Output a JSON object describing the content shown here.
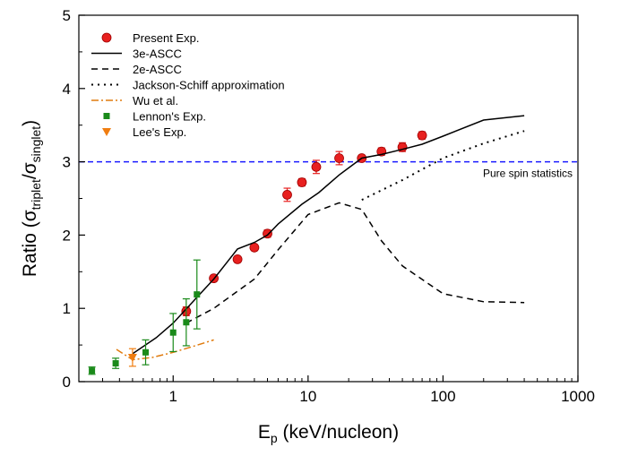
{
  "chart_data": {
    "type": "scatter",
    "xscale": "log",
    "xlim": [
      0.2,
      1000
    ],
    "ylim": [
      0,
      5
    ],
    "x_ticks": [
      {
        "value": 1,
        "label": "1"
      },
      {
        "value": 10,
        "label": "10"
      },
      {
        "value": 100,
        "label": "100"
      },
      {
        "value": 1000,
        "label": "1000"
      }
    ],
    "y_ticks": [
      {
        "value": 0,
        "label": "0"
      },
      {
        "value": 1,
        "label": "1"
      },
      {
        "value": 2,
        "label": "2"
      },
      {
        "value": 3,
        "label": "3"
      },
      {
        "value": 4,
        "label": "4"
      },
      {
        "value": 5,
        "label": "5"
      }
    ],
    "xlabel": {
      "main": "E",
      "sub": "p",
      "rest": " (keV/nucleon)"
    },
    "ylabel": {
      "prefix": "Ratio (σ",
      "sub1": "triplet",
      "mid": "/σ",
      "sub2": "singlet",
      "suffix": ")"
    },
    "grid": false,
    "legend_position": "top-left",
    "annotation": "Pure spin statistics",
    "series": [
      {
        "name": "Present Exp.",
        "style": "marker",
        "marker": "circle",
        "color": "#e8201f",
        "points": [
          {
            "x": 1.25,
            "y": 0.96,
            "err": 0.06
          },
          {
            "x": 2.0,
            "y": 1.41,
            "err": 0.04
          },
          {
            "x": 3.0,
            "y": 1.67,
            "err": 0.04
          },
          {
            "x": 4.0,
            "y": 1.83,
            "err": 0.04
          },
          {
            "x": 5.0,
            "y": 2.02,
            "err": 0.05
          },
          {
            "x": 7.0,
            "y": 2.55,
            "err": 0.09
          },
          {
            "x": 9.0,
            "y": 2.72,
            "err": 0.05
          },
          {
            "x": 11.5,
            "y": 2.93,
            "err": 0.09
          },
          {
            "x": 17.0,
            "y": 3.05,
            "err": 0.09
          },
          {
            "x": 25.0,
            "y": 3.05,
            "err": 0.04
          },
          {
            "x": 35.0,
            "y": 3.14,
            "err": 0.05
          },
          {
            "x": 50.0,
            "y": 3.2,
            "err": 0.06
          },
          {
            "x": 70.0,
            "y": 3.36,
            "err": 0.05
          }
        ]
      },
      {
        "name": "3e-ASCC",
        "style": "solid",
        "color": "#000000",
        "points": [
          {
            "x": 0.5,
            "y": 0.38
          },
          {
            "x": 0.75,
            "y": 0.6
          },
          {
            "x": 1.0,
            "y": 0.8
          },
          {
            "x": 1.5,
            "y": 1.15
          },
          {
            "x": 2.0,
            "y": 1.4
          },
          {
            "x": 3.0,
            "y": 1.81
          },
          {
            "x": 4.0,
            "y": 1.9
          },
          {
            "x": 5.0,
            "y": 2.0
          },
          {
            "x": 6.0,
            "y": 2.15
          },
          {
            "x": 9.0,
            "y": 2.42
          },
          {
            "x": 12.0,
            "y": 2.58
          },
          {
            "x": 17.0,
            "y": 2.82
          },
          {
            "x": 25.0,
            "y": 3.05
          },
          {
            "x": 35.0,
            "y": 3.1
          },
          {
            "x": 50.0,
            "y": 3.17
          },
          {
            "x": 70.0,
            "y": 3.24
          },
          {
            "x": 100.0,
            "y": 3.35
          },
          {
            "x": 200.0,
            "y": 3.57
          },
          {
            "x": 400.0,
            "y": 3.63
          }
        ]
      },
      {
        "name": "2e-ASCC",
        "style": "dashed",
        "color": "#000000",
        "points": [
          {
            "x": 1.25,
            "y": 0.8
          },
          {
            "x": 2.0,
            "y": 1.0
          },
          {
            "x": 4.0,
            "y": 1.4
          },
          {
            "x": 6.0,
            "y": 1.8
          },
          {
            "x": 10.0,
            "y": 2.28
          },
          {
            "x": 17.0,
            "y": 2.44
          },
          {
            "x": 25.0,
            "y": 2.35
          },
          {
            "x": 35.0,
            "y": 1.92
          },
          {
            "x": 50.0,
            "y": 1.58
          },
          {
            "x": 100.0,
            "y": 1.2
          },
          {
            "x": 200.0,
            "y": 1.09
          },
          {
            "x": 400.0,
            "y": 1.08
          }
        ]
      },
      {
        "name": "Jackson-Schiff approximation",
        "style": "dotted",
        "color": "#000000",
        "points": [
          {
            "x": 25.0,
            "y": 2.48
          },
          {
            "x": 50.0,
            "y": 2.75
          },
          {
            "x": 100.0,
            "y": 3.05
          },
          {
            "x": 200.0,
            "y": 3.25
          },
          {
            "x": 400.0,
            "y": 3.42
          }
        ]
      },
      {
        "name": "Wu et al.",
        "style": "dashdot",
        "color": "#e07b0e",
        "points": [
          {
            "x": 0.38,
            "y": 0.44
          },
          {
            "x": 0.5,
            "y": 0.3
          },
          {
            "x": 0.7,
            "y": 0.33
          },
          {
            "x": 1.0,
            "y": 0.4
          },
          {
            "x": 1.4,
            "y": 0.48
          },
          {
            "x": 2.0,
            "y": 0.57
          }
        ]
      },
      {
        "name": "Lennon's  Exp.",
        "style": "marker",
        "marker": "square",
        "color": "#1a8a1a",
        "points": [
          {
            "x": 0.25,
            "y": 0.15,
            "err": 0.05
          },
          {
            "x": 0.375,
            "y": 0.25,
            "err": 0.07
          },
          {
            "x": 0.625,
            "y": 0.4,
            "err": 0.17
          },
          {
            "x": 1.0,
            "y": 0.67,
            "err": 0.26
          },
          {
            "x": 1.25,
            "y": 0.81,
            "err": 0.32
          },
          {
            "x": 1.5,
            "y": 1.19,
            "err": 0.47
          }
        ]
      },
      {
        "name": "Lee's Exp.",
        "style": "marker",
        "marker": "triangle-down",
        "color": "#f07d10",
        "points": [
          {
            "x": 0.5,
            "y": 0.33,
            "err": 0.12
          }
        ]
      }
    ]
  }
}
